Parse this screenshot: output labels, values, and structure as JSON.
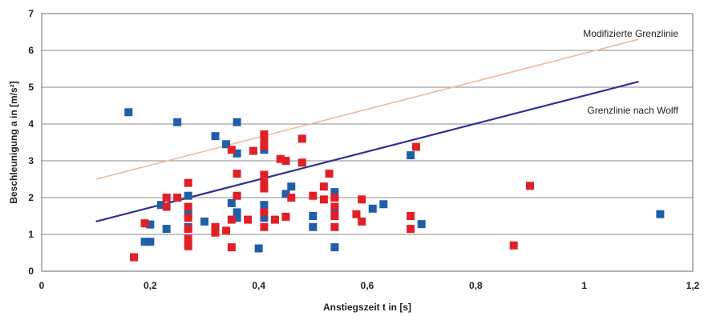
{
  "chart_data": {
    "type": "scatter",
    "title": "",
    "xlabel": "Anstiegszeit t in [s]",
    "ylabel": "Beschleunigung a in [m/s²]",
    "xlim": [
      0,
      1.2
    ],
    "ylim": [
      0,
      7
    ],
    "xticks": [
      0,
      0.2,
      0.4,
      0.6,
      0.8,
      1,
      1.2
    ],
    "xtick_labels": [
      "0",
      "0,2",
      "0,4",
      "0,6",
      "0,8",
      "1",
      "1,2"
    ],
    "yticks": [
      0,
      1,
      2,
      3,
      4,
      5,
      6,
      7
    ],
    "ytick_labels": [
      "0",
      "1",
      "2",
      "3",
      "4",
      "5",
      "6",
      "7"
    ],
    "grid": "horizontal",
    "series": [
      {
        "marker": "square",
        "color": "#1f5fa8",
        "points": [
          [
            0.16,
            4.32
          ],
          [
            0.19,
            0.8
          ],
          [
            0.2,
            0.8
          ],
          [
            0.2,
            1.27
          ],
          [
            0.22,
            1.8
          ],
          [
            0.23,
            1.15
          ],
          [
            0.25,
            4.05
          ],
          [
            0.27,
            1.2
          ],
          [
            0.27,
            1.55
          ],
          [
            0.27,
            2.05
          ],
          [
            0.3,
            1.35
          ],
          [
            0.32,
            3.67
          ],
          [
            0.34,
            3.45
          ],
          [
            0.35,
            1.85
          ],
          [
            0.36,
            4.05
          ],
          [
            0.36,
            1.45
          ],
          [
            0.36,
            1.6
          ],
          [
            0.36,
            3.2
          ],
          [
            0.4,
            0.62
          ],
          [
            0.41,
            1.45
          ],
          [
            0.41,
            1.8
          ],
          [
            0.41,
            3.3
          ],
          [
            0.45,
            2.1
          ],
          [
            0.46,
            2.3
          ],
          [
            0.5,
            1.2
          ],
          [
            0.5,
            1.5
          ],
          [
            0.54,
            0.65
          ],
          [
            0.54,
            1.55
          ],
          [
            0.54,
            2.15
          ],
          [
            0.61,
            1.7
          ],
          [
            0.63,
            1.82
          ],
          [
            0.68,
            3.15
          ],
          [
            0.7,
            1.28
          ],
          [
            1.14,
            1.55
          ]
        ]
      },
      {
        "marker": "square",
        "color": "#e02027",
        "points": [
          [
            0.17,
            0.38
          ],
          [
            0.19,
            1.3
          ],
          [
            0.23,
            2.0
          ],
          [
            0.23,
            1.75
          ],
          [
            0.25,
            2.0
          ],
          [
            0.27,
            0.68
          ],
          [
            0.27,
            0.88
          ],
          [
            0.27,
            1.15
          ],
          [
            0.27,
            1.45
          ],
          [
            0.27,
            1.75
          ],
          [
            0.27,
            2.4
          ],
          [
            0.32,
            1.05
          ],
          [
            0.32,
            1.2
          ],
          [
            0.34,
            1.1
          ],
          [
            0.35,
            1.4
          ],
          [
            0.35,
            3.3
          ],
          [
            0.35,
            0.65
          ],
          [
            0.36,
            2.05
          ],
          [
            0.36,
            2.65
          ],
          [
            0.38,
            1.4
          ],
          [
            0.39,
            3.27
          ],
          [
            0.41,
            1.2
          ],
          [
            0.41,
            1.6
          ],
          [
            0.41,
            2.25
          ],
          [
            0.41,
            2.4
          ],
          [
            0.41,
            2.62
          ],
          [
            0.41,
            3.4
          ],
          [
            0.41,
            3.55
          ],
          [
            0.41,
            3.72
          ],
          [
            0.43,
            1.4
          ],
          [
            0.44,
            3.05
          ],
          [
            0.45,
            1.48
          ],
          [
            0.45,
            3.0
          ],
          [
            0.46,
            2.0
          ],
          [
            0.48,
            2.95
          ],
          [
            0.48,
            3.6
          ],
          [
            0.5,
            2.05
          ],
          [
            0.52,
            1.95
          ],
          [
            0.52,
            2.3
          ],
          [
            0.53,
            2.65
          ],
          [
            0.54,
            1.2
          ],
          [
            0.54,
            1.5
          ],
          [
            0.54,
            1.75
          ],
          [
            0.54,
            2.0
          ],
          [
            0.58,
            1.55
          ],
          [
            0.59,
            1.35
          ],
          [
            0.59,
            1.95
          ],
          [
            0.68,
            1.15
          ],
          [
            0.68,
            1.5
          ],
          [
            0.69,
            3.38
          ],
          [
            0.87,
            0.7
          ],
          [
            0.9,
            2.32
          ]
        ]
      }
    ],
    "lines": [
      {
        "label": "Modifizierte Grenzlinie",
        "color": "#f2b89a",
        "x": [
          0.1,
          1.1
        ],
        "y": [
          2.5,
          6.3
        ]
      },
      {
        "label": "Grenzlinie nach Wolff",
        "color": "#2e3192",
        "x": [
          0.1,
          1.1
        ],
        "y": [
          1.35,
          5.15
        ]
      }
    ]
  }
}
